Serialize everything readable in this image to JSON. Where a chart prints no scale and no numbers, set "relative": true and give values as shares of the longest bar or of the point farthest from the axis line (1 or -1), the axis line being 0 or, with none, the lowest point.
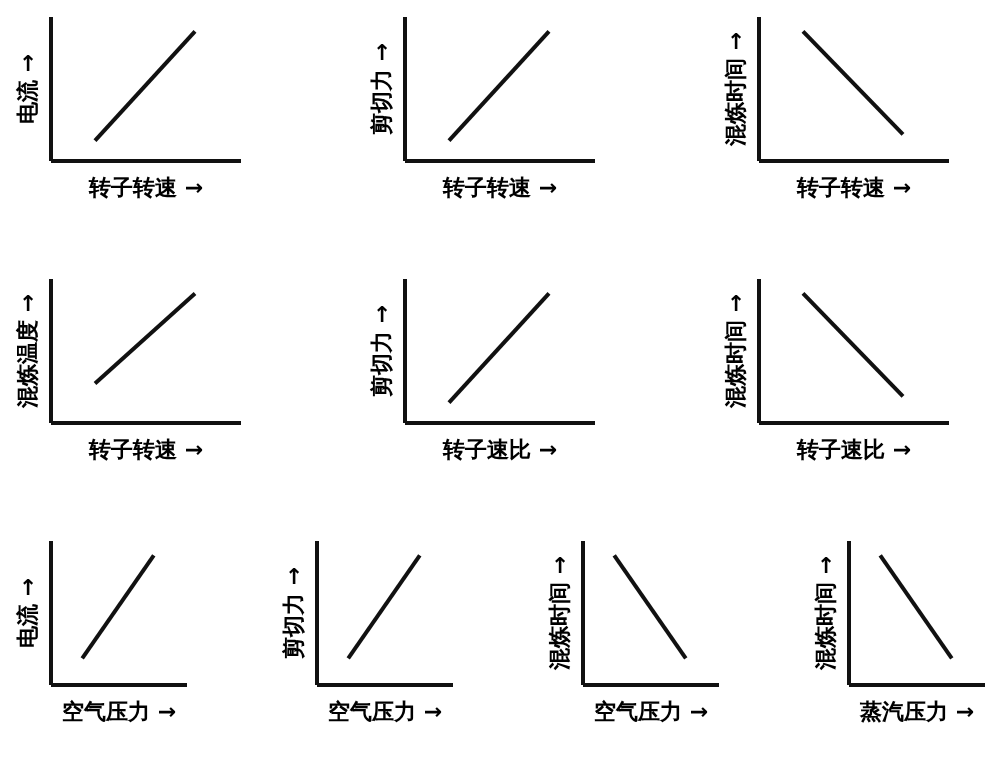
{
  "chart_data": [
    {
      "type": "line",
      "relative": true,
      "tick_labels": false,
      "grid": false,
      "xlabel": "转子转速 →",
      "ylabel": "电流 →",
      "categories": [
        null,
        null
      ],
      "series": [
        {
          "color": "#111111",
          "values": [
            0.15,
            1
          ]
        }
      ]
    },
    {
      "type": "line",
      "relative": true,
      "tick_labels": false,
      "grid": false,
      "xlabel": "转子转速 →",
      "ylabel": "剪切力 →",
      "categories": [
        null,
        null
      ],
      "series": [
        {
          "color": "#111111",
          "values": [
            0.15,
            1
          ]
        }
      ]
    },
    {
      "type": "line",
      "relative": true,
      "tick_labels": false,
      "grid": false,
      "xlabel": "转子转速 →",
      "ylabel": "混炼时间 →",
      "categories": [
        null,
        null
      ],
      "series": [
        {
          "color": "#111111",
          "values": [
            1,
            0.2
          ]
        }
      ]
    },
    {
      "type": "line",
      "relative": true,
      "tick_labels": false,
      "grid": false,
      "xlabel": "转子转速 →",
      "ylabel": "混炼温度 →",
      "categories": [
        null,
        null
      ],
      "series": [
        {
          "color": "#111111",
          "values": [
            0.3,
            1
          ]
        }
      ]
    },
    {
      "type": "line",
      "relative": true,
      "tick_labels": false,
      "grid": false,
      "xlabel": "转子速比 →",
      "ylabel": "剪切力 →",
      "categories": [
        null,
        null
      ],
      "series": [
        {
          "color": "#111111",
          "values": [
            0.15,
            1
          ]
        }
      ]
    },
    {
      "type": "line",
      "relative": true,
      "tick_labels": false,
      "grid": false,
      "xlabel": "转子速比 →",
      "ylabel": "混炼时间 →",
      "categories": [
        null,
        null
      ],
      "series": [
        {
          "color": "#111111",
          "values": [
            1,
            0.2
          ]
        }
      ]
    },
    {
      "type": "line",
      "relative": true,
      "tick_labels": false,
      "grid": false,
      "xlabel": "空气压力 →",
      "ylabel": "电流 →",
      "categories": [
        null,
        null
      ],
      "series": [
        {
          "color": "#111111",
          "values": [
            0.2,
            1
          ]
        }
      ]
    },
    {
      "type": "line",
      "relative": true,
      "tick_labels": false,
      "grid": false,
      "xlabel": "空气压力 →",
      "ylabel": "剪切力 →",
      "categories": [
        null,
        null
      ],
      "series": [
        {
          "color": "#111111",
          "values": [
            0.2,
            1
          ]
        }
      ]
    },
    {
      "type": "line",
      "relative": true,
      "tick_labels": false,
      "grid": false,
      "xlabel": "空气压力 →",
      "ylabel": "混炼时间 →",
      "categories": [
        null,
        null
      ],
      "series": [
        {
          "color": "#111111",
          "values": [
            1,
            0.2
          ]
        }
      ]
    },
    {
      "type": "line",
      "relative": true,
      "tick_labels": false,
      "grid": false,
      "xlabel": "蒸汽压力 →",
      "ylabel": "混炼时间 →",
      "categories": [
        null,
        null
      ],
      "series": [
        {
          "color": "#111111",
          "values": [
            1,
            0.2
          ]
        }
      ]
    }
  ]
}
